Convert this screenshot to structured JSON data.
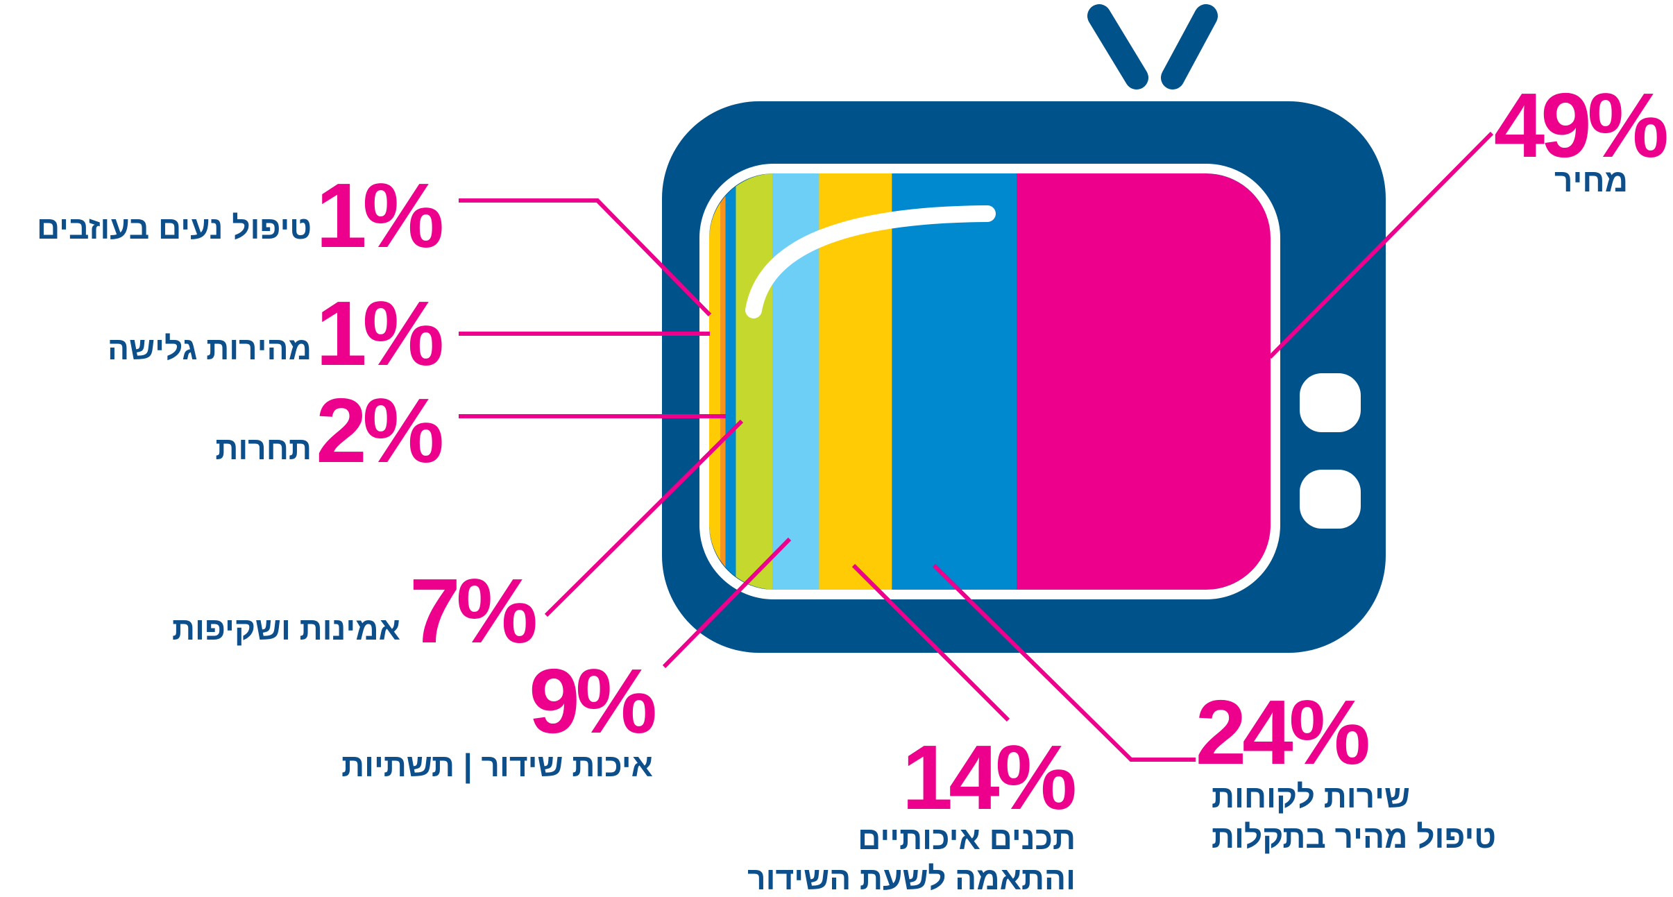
{
  "chart_data": {
    "type": "bar",
    "categories": [
      "מחיר",
      "שירות לקוחות\nטיפול מהיר בתקלות",
      "תכנים איכותיים\nוהתאמה לשעת השידור",
      "איכות שידור | תשתיות",
      "אמינות ושקיפות",
      "תחרות",
      "מהירות גלישה",
      "טיפול נעים בעוזבים"
    ],
    "values": [
      49,
      24,
      14,
      9,
      7,
      2,
      1,
      1
    ],
    "value_labels": [
      "49%",
      "24%",
      "14%",
      "9%",
      "7%",
      "2%",
      "1%",
      "1%"
    ],
    "colors": [
      "#ec008c",
      "#0089cf",
      "#ffcb05",
      "#6dcff6",
      "#c4d82e",
      "#0089cf",
      "#f7941d",
      "#ffcb05"
    ]
  }
}
